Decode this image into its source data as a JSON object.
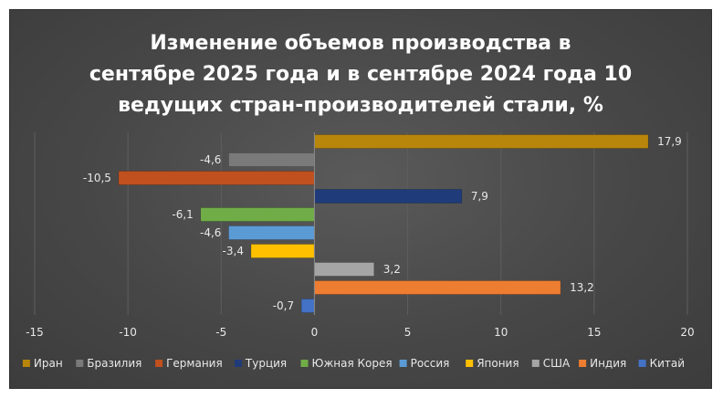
{
  "chart_data": {
    "type": "bar",
    "orientation": "horizontal",
    "title": "Изменение объемов производства в\nсентябре 2025 года и в сентябре 2024 года 10\nведущих стран-производителей стали, %",
    "categories": [
      "Иран",
      "Бразилия",
      "Германия",
      "Турция",
      "Южная Корея",
      "Россия",
      "Япония",
      "США",
      "Индия",
      "Китай"
    ],
    "values": [
      17.9,
      -4.6,
      -10.5,
      7.9,
      -6.1,
      -4.6,
      -3.4,
      3.2,
      13.2,
      -0.7
    ],
    "value_labels": [
      "17,9",
      "-4,6",
      "-10,5",
      "7,9",
      "-6,1",
      "-4,6",
      "-3,4",
      "3,2",
      "13,2",
      "-0,7"
    ],
    "colors": [
      "#b8860b",
      "#7a7a7a",
      "#c0501e",
      "#1f3b7a",
      "#70ad47",
      "#5b9bd5",
      "#ffc000",
      "#a5a5a5",
      "#ed7d31",
      "#4472c4"
    ],
    "xlim": [
      -15,
      20
    ],
    "xticks": [
      -15,
      -10,
      -5,
      0,
      5,
      10,
      15,
      20
    ],
    "grid": true,
    "legend_position": "bottom"
  }
}
